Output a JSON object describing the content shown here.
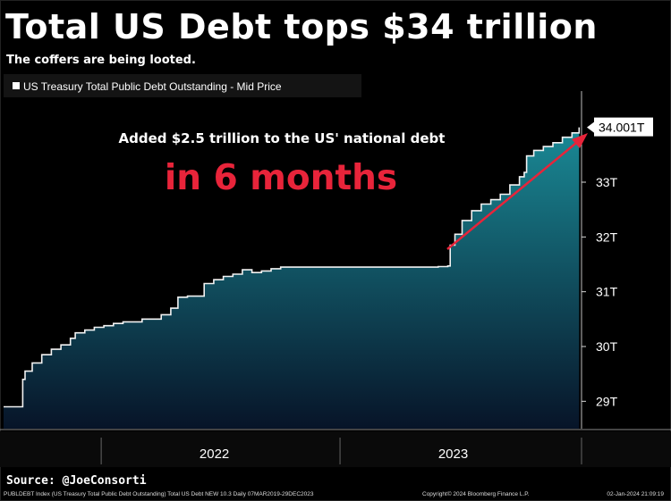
{
  "title": "Total US Debt tops $34 trillion",
  "subtitle": "The coffers are being looted.",
  "source": "Source: @JoeConsorti",
  "footer": {
    "index": "PUBLDEBT Index (US Treasury Total Public Debt Outstanding) Total US Debt NEW 10.3  Daily 07MAR2019-29DEC2023",
    "copyright": "Copyright© 2024 Bloomberg Finance L.P.",
    "timestamp": "02-Jan-2024 21:09:19"
  },
  "chart_data": {
    "type": "area",
    "title": "Total US Debt tops $34 trillion",
    "legend": "US Treasury Total Public Debt Outstanding - Mid Price",
    "legend_position": "top-left",
    "unit": "trillion USD",
    "x_tick_labels": [
      "2022",
      "2023"
    ],
    "x_range": [
      2021.58,
      2024.0
    ],
    "ylim": [
      28.5,
      34.5
    ],
    "y_ticks": [
      29,
      30,
      31,
      32,
      33
    ],
    "y_tick_labels": [
      "29T",
      "30T",
      "31T",
      "32T",
      "33T"
    ],
    "last_value": 34.001,
    "last_value_label": "34.001T",
    "series": [
      {
        "name": "US Treasury Total Public Debt Outstanding - Mid Price",
        "x": [
          2021.58,
          2021.65,
          2021.66,
          2021.67,
          2021.7,
          2021.74,
          2021.78,
          2021.82,
          2021.86,
          2021.88,
          2021.92,
          2021.96,
          2022.0,
          2022.04,
          2022.08,
          2022.12,
          2022.16,
          2022.2,
          2022.24,
          2022.28,
          2022.31,
          2022.35,
          2022.38,
          2022.42,
          2022.46,
          2022.5,
          2022.54,
          2022.58,
          2022.62,
          2022.66,
          2022.7,
          2022.74,
          2022.78,
          2022.82,
          2022.86,
          2022.9,
          2022.94,
          2022.98,
          2023.0,
          2023.04,
          2023.08,
          2023.12,
          2023.16,
          2023.2,
          2023.24,
          2023.3,
          2023.4,
          2023.44,
          2023.45,
          2023.47,
          2023.5,
          2023.54,
          2023.58,
          2023.62,
          2023.66,
          2023.7,
          2023.74,
          2023.76,
          2023.77,
          2023.8,
          2023.84,
          2023.88,
          2023.92,
          2023.96,
          2023.99
        ],
        "values": [
          28.9,
          28.9,
          29.4,
          29.55,
          29.7,
          29.85,
          29.95,
          30.03,
          30.15,
          30.25,
          30.3,
          30.35,
          30.38,
          30.42,
          30.45,
          30.45,
          30.5,
          30.5,
          30.58,
          30.7,
          30.9,
          30.92,
          30.92,
          31.15,
          31.22,
          31.28,
          31.32,
          31.4,
          31.35,
          31.38,
          31.42,
          31.45,
          31.45,
          31.45,
          31.45,
          31.45,
          31.45,
          31.45,
          31.45,
          31.45,
          31.45,
          31.45,
          31.45,
          31.45,
          31.45,
          31.45,
          31.46,
          31.47,
          31.85,
          32.05,
          32.3,
          32.48,
          32.6,
          32.68,
          32.78,
          32.95,
          33.1,
          33.18,
          33.48,
          33.58,
          33.65,
          33.72,
          33.82,
          33.9,
          34.001
        ]
      }
    ],
    "annotations": [
      {
        "text": "Added $2.5 trillion to the US' national debt",
        "color": "#ffffff"
      },
      {
        "text": "in 6 months",
        "color": "#e8243a"
      }
    ]
  },
  "colors": {
    "background": "#000000",
    "fill_top": "#1a8a96",
    "fill_bottom": "#071428",
    "line": "#f2f2f2",
    "accent_red": "#e8243a",
    "grid": "#d8d8d8"
  }
}
